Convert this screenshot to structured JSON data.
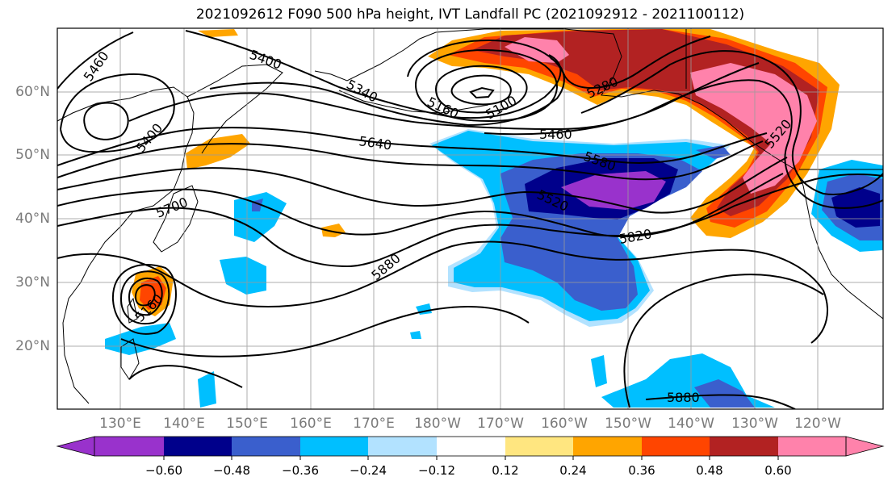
{
  "title": "2021092612 F090 500 hPa height, IVT Landfall PC (2021092912 - 2021100112)",
  "map": {
    "lat_labels": [
      "60°N",
      "50°N",
      "40°N",
      "30°N",
      "20°N"
    ],
    "lon_labels": [
      "130°E",
      "140°E",
      "150°E",
      "160°E",
      "170°E",
      "180°W",
      "170°W",
      "160°W",
      "150°W",
      "140°W",
      "130°W",
      "120°W"
    ],
    "contour_labels": [
      "5460",
      "5400",
      "5340",
      "5160",
      "5100",
      "5280",
      "5520",
      "5400",
      "5640",
      "5460",
      "5580",
      "5520",
      "5700",
      "5760",
      "5820",
      "5880",
      "5880",
      "5160"
    ]
  },
  "colorbar": {
    "ticks": [
      "−0.60",
      "−0.48",
      "−0.36",
      "−0.24",
      "−0.12",
      "0.12",
      "0.24",
      "0.36",
      "0.48",
      "0.60"
    ],
    "colors": [
      "#9932cc",
      "#00008b",
      "#3a5fcd",
      "#00bfff",
      "#b2e2ff",
      "#ffffff",
      "#ffe680",
      "#ffa500",
      "#ff4500",
      "#b22222",
      "#ff82ab"
    ]
  }
}
